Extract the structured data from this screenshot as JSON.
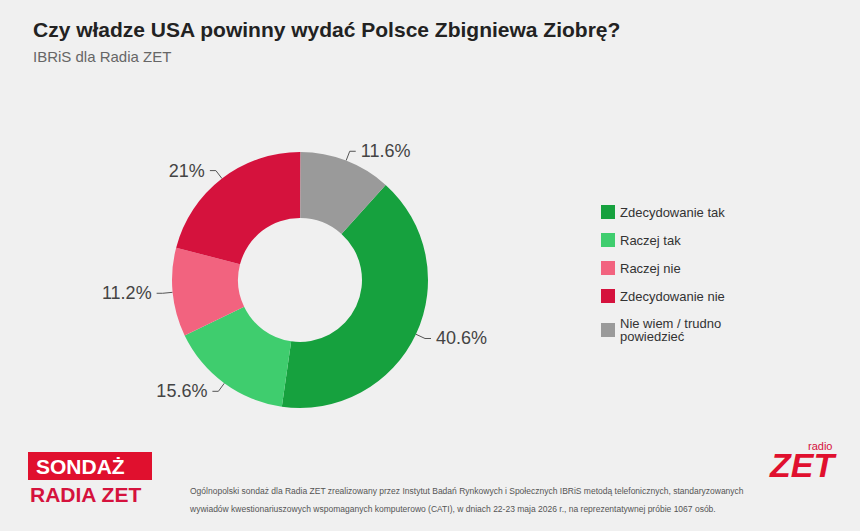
{
  "chart_data": {
    "type": "pie",
    "title": "Czy władze USA powinny wydać Polsce Zbigniewa Ziobrę?",
    "subtitle": "IBRiS dla Radia ZET",
    "categories": [
      "Zdecydowanie tak",
      "Raczej tak",
      "Raczej nie",
      "Zdecydowanie nie",
      "Nie wiem / trudno powiedzieć"
    ],
    "values": [
      40.6,
      15.6,
      11.2,
      21,
      11.6
    ],
    "value_labels": [
      "40.6%",
      "15.6%",
      "11.2%",
      "21%",
      "11.6%"
    ],
    "colors": [
      "#16a13e",
      "#3fcd6e",
      "#f2637f",
      "#d5123d",
      "#9a9a9a"
    ],
    "data_labels": true,
    "legend": "right",
    "note": [
      "Ogólnopolski sondaż dla Radia ZET zrealizowany przez Instytut Badań Rynkowych i Społecznych IBRiS metodą telefonicznych, standaryzowanych",
      "wywiadów kwestionariuszowych wspomaganych komputerowo (CATI), w dniach 22-23 maja 2026 r., na reprezentatywnej próbie 1067 osób."
    ],
    "annotations": [
      "SONDAŻ",
      "RADIA ZET",
      "radio",
      "ZET"
    ]
  }
}
